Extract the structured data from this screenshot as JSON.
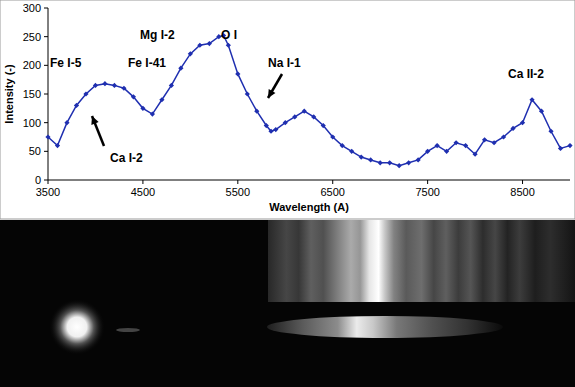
{
  "chart_data": {
    "type": "line",
    "x_label": "Wavelength (A)",
    "y_label": "Intensity (-)",
    "annotations": [
      "Fe I-5",
      "Fe I-41",
      "Ca I-2",
      "Mg I-2",
      "O I",
      "Na I-1",
      "Ca II-2"
    ],
    "x": [
      3500,
      3600,
      3700,
      3800,
      3900,
      4000,
      4100,
      4200,
      4300,
      4400,
      4500,
      4600,
      4700,
      4800,
      4900,
      5000,
      5100,
      5200,
      5300,
      5350,
      5400,
      5500,
      5600,
      5700,
      5800,
      5850,
      5900,
      6000,
      6100,
      6200,
      6300,
      6400,
      6500,
      6600,
      6700,
      6800,
      6900,
      7000,
      7100,
      7200,
      7300,
      7400,
      7500,
      7600,
      7700,
      7800,
      7900,
      8000,
      8100,
      8200,
      8300,
      8400,
      8500,
      8600,
      8700,
      8800,
      8900,
      9000
    ],
    "values": [
      75,
      60,
      100,
      130,
      150,
      165,
      168,
      165,
      160,
      145,
      125,
      115,
      140,
      165,
      195,
      220,
      235,
      238,
      250,
      252,
      235,
      185,
      150,
      120,
      95,
      85,
      88,
      100,
      110,
      120,
      110,
      95,
      75,
      60,
      50,
      40,
      35,
      30,
      30,
      25,
      30,
      35,
      50,
      60,
      50,
      65,
      60,
      45,
      70,
      65,
      75,
      90,
      100,
      140,
      120,
      85,
      55,
      60
    ],
    "color": "#1f2fb0",
    "marker": "diamond",
    "line_style": "solid",
    "xlim": [
      3500,
      9000
    ],
    "xticks": [
      3500,
      4500,
      5500,
      6500,
      7500,
      8500
    ],
    "ylim": [
      0,
      300
    ],
    "yticks": [
      0,
      50,
      100,
      150,
      200,
      250,
      300
    ],
    "grid": false
  }
}
